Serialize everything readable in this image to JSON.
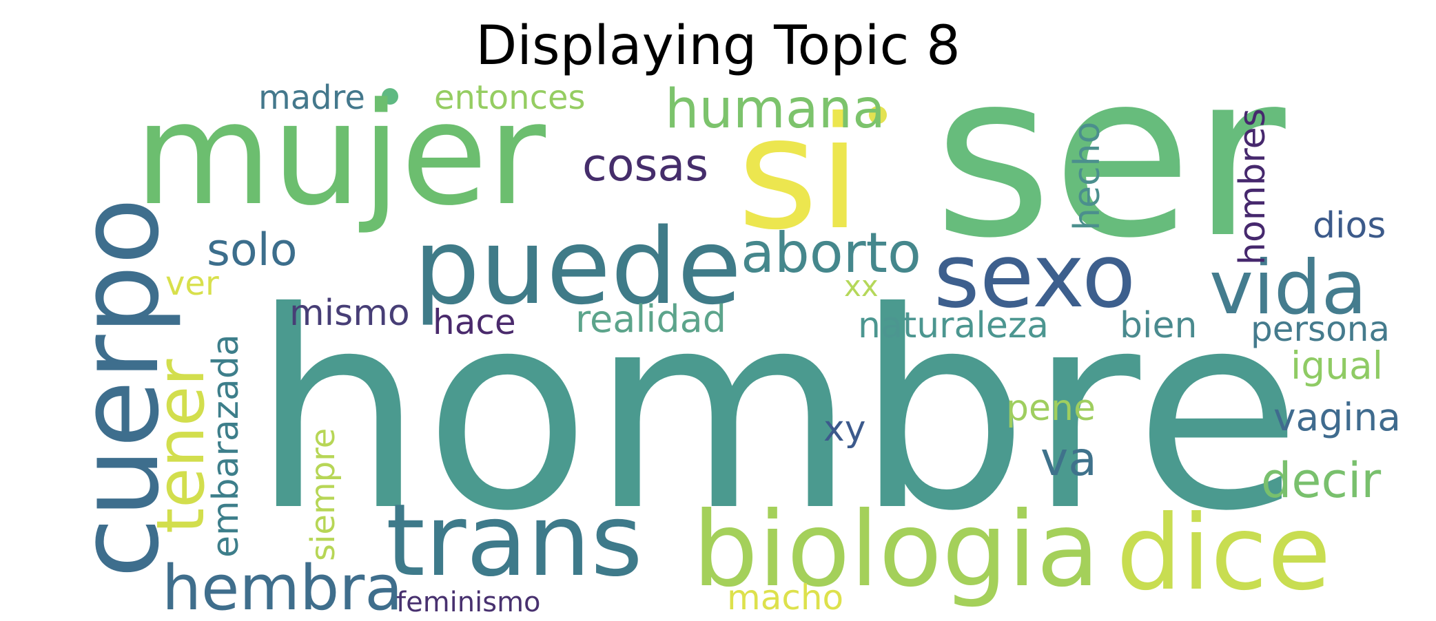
{
  "title": "Displaying Topic 8",
  "words": [
    {
      "text": "hombre",
      "color": "#4b9a8f"
    },
    {
      "text": "ser",
      "color": "#67bc7c"
    },
    {
      "text": "si",
      "color": "#ece64f"
    },
    {
      "text": "mujer",
      "color": "#6cbe6f"
    },
    {
      "text": "puede",
      "color": "#3f7b88"
    },
    {
      "text": "cuerpo",
      "color": "#3e6e8d"
    },
    {
      "text": "trans",
      "color": "#3e7a8a"
    },
    {
      "text": "biologia",
      "color": "#a4d05a"
    },
    {
      "text": "dice",
      "color": "#c8dd51"
    },
    {
      "text": "sexo",
      "color": "#3d5f8d"
    },
    {
      "text": "vida",
      "color": "#447c8e"
    },
    {
      "text": "hembra",
      "color": "#3f6e8c"
    },
    {
      "text": "tener",
      "color": "#d2de4d"
    },
    {
      "text": "aborto",
      "color": "#45878c"
    },
    {
      "text": "humana",
      "color": "#7cc36c"
    },
    {
      "text": "cosas",
      "color": "#452d6b"
    },
    {
      "text": "solo",
      "color": "#3c6e8c"
    },
    {
      "text": "decir",
      "color": "#79c06d"
    },
    {
      "text": "va",
      "color": "#3f728b"
    },
    {
      "text": "hecho",
      "color": "#4b8f8d"
    },
    {
      "text": "hombres",
      "color": "#46286d"
    },
    {
      "text": "dios",
      "color": "#3c5a8a"
    },
    {
      "text": "persona",
      "color": "#457b8d"
    },
    {
      "text": "naturaleza",
      "color": "#4c9690"
    },
    {
      "text": "bien",
      "color": "#4a8a8e"
    },
    {
      "text": "realidad",
      "color": "#5ca48b"
    },
    {
      "text": "igual",
      "color": "#8fcb64"
    },
    {
      "text": "vagina",
      "color": "#3f6b8e"
    },
    {
      "text": "embarazada",
      "color": "#3d7e8a"
    },
    {
      "text": "siempre",
      "color": "#b7d656"
    },
    {
      "text": "pene",
      "color": "#9fce5f"
    },
    {
      "text": "xy",
      "color": "#3c5a8c"
    },
    {
      "text": "mismo",
      "color": "#473e76"
    },
    {
      "text": "hace",
      "color": "#4a2a6c"
    },
    {
      "text": "ver",
      "color": "#d8e04c"
    },
    {
      "text": "xx",
      "color": "#b5d85a"
    },
    {
      "text": "madre",
      "color": "#44788c"
    },
    {
      "text": "entonces",
      "color": "#95cd62"
    },
    {
      "text": "macho",
      "color": "#dde14c"
    },
    {
      "text": "feminismo",
      "color": "#48316f"
    }
  ]
}
